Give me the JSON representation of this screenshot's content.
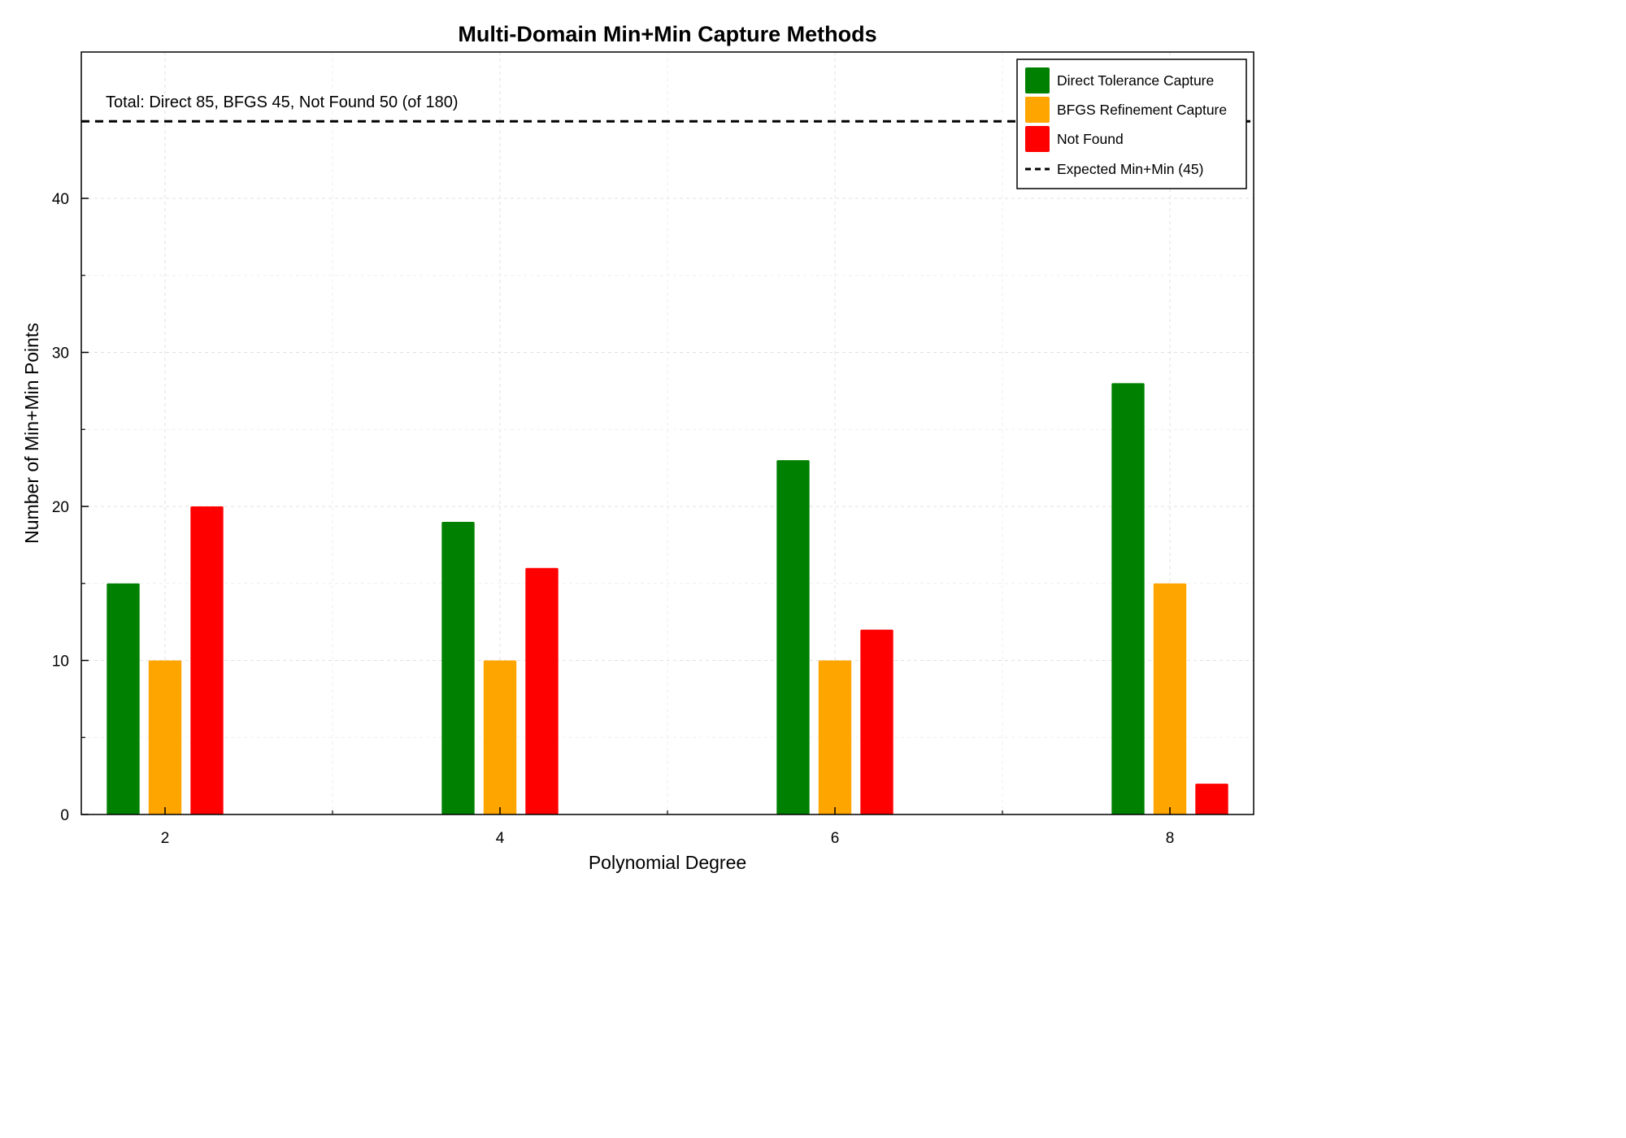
{
  "chart_data": {
    "type": "bar",
    "title": "Multi-Domain Min+Min Capture Methods",
    "xlabel": "Polynomial Degree",
    "ylabel": "Number of Min+Min Points",
    "categories": [
      "2",
      "4",
      "6",
      "8"
    ],
    "x": [
      2,
      4,
      6,
      8
    ],
    "xlim": [
      1.5,
      8.5
    ],
    "ylim": [
      0,
      49.5
    ],
    "yticks": [
      0,
      10,
      20,
      30,
      40
    ],
    "grid": true,
    "legend_position": "top-right",
    "series": [
      {
        "name": "Direct Tolerance Capture",
        "color": "#008000",
        "values": [
          15,
          19,
          23,
          28
        ]
      },
      {
        "name": "BFGS Refinement Capture",
        "color": "#FFA500",
        "values": [
          10,
          10,
          10,
          15
        ]
      },
      {
        "name": "Not Found",
        "color": "#FF0000",
        "values": [
          20,
          16,
          12,
          2
        ]
      }
    ],
    "reference_line": {
      "name": "Expected Min+Min (45)",
      "value": 45,
      "style": "dashed",
      "color": "#000000"
    },
    "annotation": "Total: Direct 85, BFGS 45, Not Found 50 (of 180)"
  }
}
